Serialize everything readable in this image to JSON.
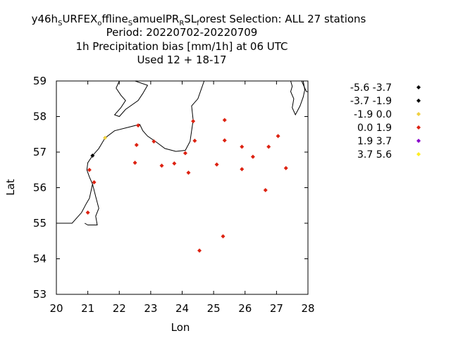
{
  "chart_data": {
    "type": "scatter",
    "title_lines": [
      {
        "segments": [
          {
            "text": "y46h"
          },
          {
            "text": "S",
            "sub": true
          },
          {
            "text": "URFEX"
          },
          {
            "text": "o",
            "sub": true
          },
          {
            "text": "ffline"
          },
          {
            "text": "S",
            "sub": true
          },
          {
            "text": "amuelPR"
          },
          {
            "text": "R",
            "sub": true
          },
          {
            "text": "SL"
          },
          {
            "text": "f",
            "sub": true
          },
          {
            "text": "orest   Selection: ALL     27 stations"
          }
        ]
      },
      {
        "segments": [
          {
            "text": "Period: 20220702-20220709"
          }
        ]
      },
      {
        "segments": [
          {
            "text": "1h Precipitation bias [mm/1h] at  06 UTC"
          }
        ]
      },
      {
        "segments": [
          {
            "text": "Used  12 + 18-17"
          }
        ]
      }
    ],
    "xlabel": "Lon",
    "ylabel": "Lat",
    "xlim": [
      20,
      28
    ],
    "ylim": [
      53,
      59
    ],
    "xticks": [
      "20",
      "21",
      "22",
      "23",
      "24",
      "25",
      "26",
      "27",
      "28"
    ],
    "yticks": [
      "53",
      "54",
      "55",
      "56",
      "57",
      "58",
      "59"
    ],
    "grid": false,
    "legend_position": "right",
    "legend": [
      {
        "label": "-5.6 -3.7",
        "color": "#000000"
      },
      {
        "label": "-3.7 -1.9",
        "color": "#000000"
      },
      {
        "label": "-1.9 0.0",
        "color": "#f0d040"
      },
      {
        "label": "0.0 1.9",
        "color": "#dd2211"
      },
      {
        "label": "1.9 3.7",
        "color": "#8800cc"
      },
      {
        "label": "3.7 5.6",
        "color": "#ffee22"
      }
    ],
    "points": [
      {
        "x": 21.15,
        "y": 56.9,
        "bin": 1
      },
      {
        "x": 21.55,
        "y": 57.4,
        "bin": 2
      },
      {
        "x": 21.05,
        "y": 56.5,
        "bin": 3
      },
      {
        "x": 21.2,
        "y": 56.15,
        "bin": 3
      },
      {
        "x": 21.0,
        "y": 55.3,
        "bin": 3
      },
      {
        "x": 22.6,
        "y": 57.75,
        "bin": 3
      },
      {
        "x": 22.55,
        "y": 57.2,
        "bin": 3
      },
      {
        "x": 22.5,
        "y": 56.7,
        "bin": 3
      },
      {
        "x": 23.1,
        "y": 57.3,
        "bin": 3
      },
      {
        "x": 23.35,
        "y": 56.62,
        "bin": 3
      },
      {
        "x": 23.75,
        "y": 56.68,
        "bin": 3
      },
      {
        "x": 24.35,
        "y": 57.87,
        "bin": 3
      },
      {
        "x": 24.4,
        "y": 57.32,
        "bin": 3
      },
      {
        "x": 24.1,
        "y": 56.97,
        "bin": 3
      },
      {
        "x": 24.2,
        "y": 56.42,
        "bin": 3
      },
      {
        "x": 25.35,
        "y": 57.9,
        "bin": 3
      },
      {
        "x": 25.35,
        "y": 57.33,
        "bin": 3
      },
      {
        "x": 25.1,
        "y": 56.65,
        "bin": 3
      },
      {
        "x": 25.9,
        "y": 57.15,
        "bin": 3
      },
      {
        "x": 25.9,
        "y": 56.52,
        "bin": 3
      },
      {
        "x": 26.25,
        "y": 56.87,
        "bin": 3
      },
      {
        "x": 26.75,
        "y": 57.15,
        "bin": 3
      },
      {
        "x": 27.05,
        "y": 57.45,
        "bin": 3
      },
      {
        "x": 27.3,
        "y": 56.55,
        "bin": 3
      },
      {
        "x": 26.65,
        "y": 55.93,
        "bin": 3
      },
      {
        "x": 25.3,
        "y": 54.63,
        "bin": 3
      },
      {
        "x": 24.55,
        "y": 54.23,
        "bin": 3
      }
    ],
    "coastlines": [
      [
        [
          20.0,
          55.0
        ],
        [
          20.5,
          55.0
        ],
        [
          20.8,
          55.3
        ],
        [
          20.95,
          55.55
        ],
        [
          21.05,
          55.7
        ],
        [
          21.1,
          55.9
        ],
        [
          21.15,
          56.1
        ],
        [
          21.05,
          56.3
        ],
        [
          20.97,
          56.5
        ],
        [
          21.0,
          56.7
        ],
        [
          21.15,
          56.9
        ],
        [
          21.35,
          57.1
        ],
        [
          21.55,
          57.4
        ],
        [
          21.85,
          57.6
        ],
        [
          22.3,
          57.7
        ],
        [
          22.65,
          57.78
        ],
        [
          22.75,
          57.6
        ],
        [
          22.9,
          57.45
        ],
        [
          23.15,
          57.3
        ],
        [
          23.45,
          57.1
        ],
        [
          23.8,
          57.02
        ],
        [
          24.1,
          57.05
        ],
        [
          24.25,
          57.3
        ],
        [
          24.3,
          57.6
        ],
        [
          24.35,
          57.9
        ],
        [
          24.3,
          58.3
        ],
        [
          24.5,
          58.5
        ],
        [
          24.7,
          59.0
        ]
      ],
      [
        [
          21.15,
          56.1
        ],
        [
          21.25,
          55.75
        ],
        [
          21.35,
          55.42
        ],
        [
          21.25,
          55.2
        ],
        [
          21.3,
          54.95
        ],
        [
          21.0,
          54.95
        ],
        [
          20.9,
          55.0
        ]
      ],
      [
        [
          22.0,
          59.0
        ],
        [
          22.5,
          59.0
        ],
        [
          22.9,
          58.88
        ],
        [
          22.75,
          58.65
        ],
        [
          22.6,
          58.45
        ],
        [
          22.2,
          58.2
        ],
        [
          22.0,
          58.0
        ],
        [
          21.85,
          58.05
        ],
        [
          22.05,
          58.25
        ],
        [
          22.2,
          58.45
        ],
        [
          22.05,
          58.6
        ],
        [
          21.9,
          58.8
        ],
        [
          22.0,
          59.0
        ]
      ],
      [
        [
          27.45,
          59.0
        ],
        [
          27.5,
          58.85
        ],
        [
          27.45,
          58.7
        ],
        [
          27.55,
          58.5
        ],
        [
          27.5,
          58.25
        ],
        [
          27.6,
          58.05
        ],
        [
          27.75,
          58.3
        ],
        [
          27.85,
          58.55
        ],
        [
          27.9,
          58.75
        ],
        [
          27.85,
          59.0
        ]
      ],
      [
        [
          27.8,
          59.0
        ],
        [
          27.9,
          58.8
        ],
        [
          27.95,
          58.7
        ],
        [
          28.0,
          58.7
        ]
      ]
    ]
  }
}
